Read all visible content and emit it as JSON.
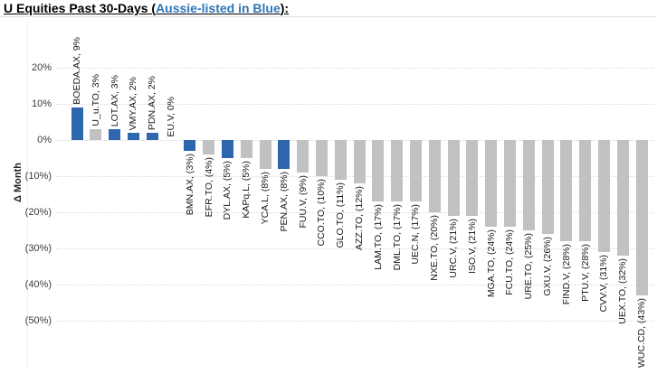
{
  "title": {
    "prefix": "U Equities Past 30-Days (",
    "highlight": "Aussie-listed in Blue",
    "suffix": "):"
  },
  "colors": {
    "aussie_blue": "#2E67B0",
    "other_gray": "#C1C1C1",
    "title_highlight_blue": "#2E75B6",
    "gridline": "#D9D9D9"
  },
  "chart_data": {
    "type": "bar",
    "title": "U Equities Past 30-Days (Aussie-listed in Blue):",
    "xlabel": "",
    "ylabel": "Δ Month",
    "ylim": [
      -50,
      30
    ],
    "grid": "horizontal-dotted",
    "legend_position": "none",
    "color_coding_note": "Aussie-listed tickers shown in blue, all others in gray",
    "yticks": [
      {
        "value": 20,
        "label": "20%"
      },
      {
        "value": 10,
        "label": "10%"
      },
      {
        "value": 0,
        "label": "0%"
      },
      {
        "value": -10,
        "label": "(10%)"
      },
      {
        "value": -20,
        "label": "(20%)"
      },
      {
        "value": -30,
        "label": "(30%)"
      },
      {
        "value": -40,
        "label": "(40%)"
      },
      {
        "value": -50,
        "label": "(50%)"
      }
    ],
    "bars": [
      {
        "ticker": "BOEDA.AX",
        "value_pct": 9,
        "label": "BOEDA.AX, 9%",
        "aussie": true
      },
      {
        "ticker": "U_u.TO",
        "value_pct": 3,
        "label": "U_u.TO, 3%",
        "aussie": false
      },
      {
        "ticker": "LOT.AX",
        "value_pct": 3,
        "label": "LOT.AX, 3%",
        "aussie": true
      },
      {
        "ticker": "VMY.AX",
        "value_pct": 2,
        "label": "VMY.AX, 2%",
        "aussie": true
      },
      {
        "ticker": "PDN.AX",
        "value_pct": 2,
        "label": "PDN.AX, 2%",
        "aussie": true
      },
      {
        "ticker": "EU.V",
        "value_pct": 0,
        "label": "EU.V, 0%",
        "aussie": false
      },
      {
        "ticker": "BMN.AX",
        "value_pct": -3,
        "label": "BMN.AX, (3%)",
        "aussie": true
      },
      {
        "ticker": "EFR.TO",
        "value_pct": -4,
        "label": "EFR.TO, (4%)",
        "aussie": false
      },
      {
        "ticker": "DYL.AX",
        "value_pct": -5,
        "label": "DYL.AX, (5%)",
        "aussie": true
      },
      {
        "ticker": "KAPq.L",
        "value_pct": -5,
        "label": "KAPq.L, (5%)",
        "aussie": false
      },
      {
        "ticker": "YCA.L",
        "value_pct": -8,
        "label": "YCA.L, (8%)",
        "aussie": false
      },
      {
        "ticker": "PEN.AX",
        "value_pct": -8,
        "label": "PEN.AX, (8%)",
        "aussie": true
      },
      {
        "ticker": "FUU.V",
        "value_pct": -9,
        "label": "FUU.V, (9%)",
        "aussie": false
      },
      {
        "ticker": "CCO.TO",
        "value_pct": -10,
        "label": "CCO.TO, (10%)",
        "aussie": false
      },
      {
        "ticker": "GLO.TO",
        "value_pct": -11,
        "label": "GLO.TO, (11%)",
        "aussie": false
      },
      {
        "ticker": "AZZ.TO",
        "value_pct": -12,
        "label": "AZZ.TO, (12%)",
        "aussie": false
      },
      {
        "ticker": "LAM.TO",
        "value_pct": -17,
        "label": "LAM.TO, (17%)",
        "aussie": false
      },
      {
        "ticker": "DML.TO",
        "value_pct": -17,
        "label": "DML.TO, (17%)",
        "aussie": false
      },
      {
        "ticker": "UEC.N",
        "value_pct": -17,
        "label": "UEC.N, (17%)",
        "aussie": false
      },
      {
        "ticker": "NXE.TO",
        "value_pct": -20,
        "label": "NXE.TO, (20%)",
        "aussie": false
      },
      {
        "ticker": "URC.V",
        "value_pct": -21,
        "label": "URC.V, (21%)",
        "aussie": false
      },
      {
        "ticker": "ISO.V",
        "value_pct": -21,
        "label": "ISO.V, (21%)",
        "aussie": false
      },
      {
        "ticker": "MGA.TO",
        "value_pct": -24,
        "label": "MGA.TO, (24%)",
        "aussie": false
      },
      {
        "ticker": "FCU.TO",
        "value_pct": -24,
        "label": "FCU.TO, (24%)",
        "aussie": false
      },
      {
        "ticker": "URE.TO",
        "value_pct": -25,
        "label": "URE.TO, (25%)",
        "aussie": false
      },
      {
        "ticker": "GXU.V",
        "value_pct": -26,
        "label": "GXU.V, (26%)",
        "aussie": false
      },
      {
        "ticker": "FIND.V",
        "value_pct": -28,
        "label": "FIND.V, (28%)",
        "aussie": false
      },
      {
        "ticker": "PTU.V",
        "value_pct": -28,
        "label": "PTU.V, (28%)",
        "aussie": false
      },
      {
        "ticker": "CVV.V",
        "value_pct": -31,
        "label": "CVV.V, (31%)",
        "aussie": false
      },
      {
        "ticker": "UEX.TO",
        "value_pct": -32,
        "label": "UEX.TO, (32%)",
        "aussie": false
      },
      {
        "ticker": "WUC.CD",
        "value_pct": -43,
        "label": "WUC.CD, (43%)",
        "aussie": false
      }
    ]
  }
}
